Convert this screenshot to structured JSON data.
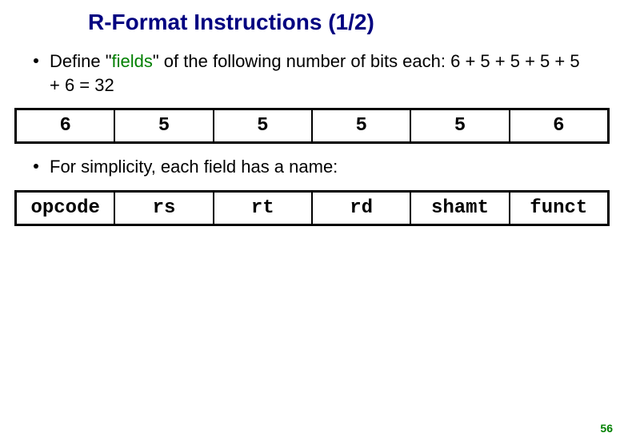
{
  "title": "R-Format Instructions (1/2)",
  "bullet1_pre": "Define \"",
  "bullet1_green": "fields",
  "bullet1_post": "\" of the following number of bits each: 6 + 5 + 5 + 5 + 5 + 6 = 32",
  "bullet2": "For simplicity, each field has a name:",
  "bits_table": {
    "cells": [
      "6",
      "5",
      "5",
      "5",
      "5",
      "6"
    ],
    "border_color": "#000000",
    "cell_font": "Courier New",
    "cell_fontsize": 24
  },
  "names_table": {
    "cells": [
      "opcode",
      "rs",
      "rt",
      "rd",
      "shamt",
      "funct"
    ],
    "border_color": "#000000",
    "cell_font": "Courier New",
    "cell_fontsize": 24
  },
  "page_number": "56",
  "colors": {
    "title_color": "#000080",
    "accent_green": "#008000",
    "text_color": "#000000",
    "background": "#ffffff"
  },
  "typography": {
    "title_fontsize": 28,
    "body_fontsize": 22,
    "mono_fontsize": 24,
    "title_weight": "bold"
  }
}
